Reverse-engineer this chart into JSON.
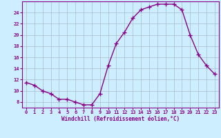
{
  "x": [
    0,
    1,
    2,
    3,
    4,
    5,
    6,
    7,
    8,
    9,
    10,
    11,
    12,
    13,
    14,
    15,
    16,
    17,
    18,
    19,
    20,
    21,
    22,
    23
  ],
  "y": [
    11.5,
    11.0,
    10.0,
    9.5,
    8.5,
    8.5,
    8.0,
    7.5,
    7.5,
    9.5,
    14.5,
    18.5,
    20.5,
    23.0,
    24.5,
    25.0,
    25.5,
    25.5,
    25.5,
    24.5,
    20.0,
    16.5,
    14.5,
    13.0
  ],
  "line_color": "#880088",
  "marker": "+",
  "marker_size": 4,
  "bg_color": "#cceeff",
  "grid_color": "#aabbcc",
  "xlabel": "Windchill (Refroidissement éolien,°C)",
  "xlabel_color": "#880088",
  "tick_color": "#880088",
  "ylim": [
    7,
    26
  ],
  "xlim": [
    -0.5,
    23.5
  ],
  "yticks": [
    8,
    10,
    12,
    14,
    16,
    18,
    20,
    22,
    24
  ],
  "xticks": [
    0,
    1,
    2,
    3,
    4,
    5,
    6,
    7,
    8,
    9,
    10,
    11,
    12,
    13,
    14,
    15,
    16,
    17,
    18,
    19,
    20,
    21,
    22,
    23
  ],
  "linewidth": 1.0,
  "spine_color": "#880088"
}
